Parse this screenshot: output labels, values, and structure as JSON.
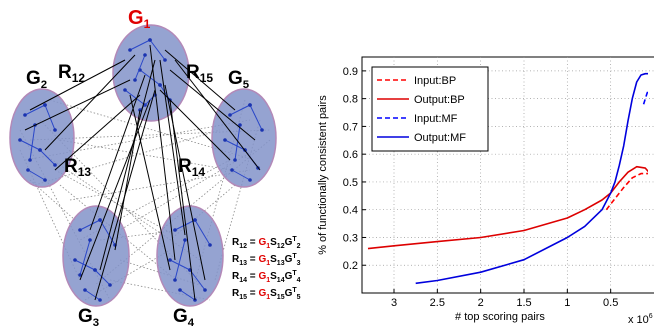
{
  "diagram": {
    "networks": [
      {
        "id": "G1",
        "letter": "G",
        "sub": "1",
        "highlight": true
      },
      {
        "id": "G2",
        "letter": "G",
        "sub": "2",
        "highlight": false
      },
      {
        "id": "G3",
        "letter": "G",
        "sub": "3",
        "highlight": false
      },
      {
        "id": "G4",
        "letter": "G",
        "sub": "4",
        "highlight": false
      },
      {
        "id": "G5",
        "letter": "G",
        "sub": "5",
        "highlight": false
      }
    ],
    "relations": [
      {
        "id": "R12",
        "letter": "R",
        "sub": "12"
      },
      {
        "id": "R13",
        "letter": "R",
        "sub": "13"
      },
      {
        "id": "R14",
        "letter": "R",
        "sub": "14"
      },
      {
        "id": "R15",
        "letter": "R",
        "sub": "15"
      }
    ],
    "equations": [
      {
        "lhs": "R",
        "lhs_sub": "12",
        "eq": " = ",
        "g1": "G",
        "g1_sub": "1",
        "s": "S",
        "s_sub": "12",
        "g": "G",
        "g_sup": "T",
        "g_sub": "2"
      },
      {
        "lhs": "R",
        "lhs_sub": "13",
        "eq": " = ",
        "g1": "G",
        "g1_sub": "1",
        "s": "S",
        "s_sub": "13",
        "g": "G",
        "g_sup": "T",
        "g_sub": "3"
      },
      {
        "lhs": "R",
        "lhs_sub": "14",
        "eq": " = ",
        "g1": "G",
        "g1_sub": "1",
        "s": "S",
        "s_sub": "14",
        "g": "G",
        "g_sup": "T",
        "g_sub": "4"
      },
      {
        "lhs": "R",
        "lhs_sub": "15",
        "eq": " = ",
        "g1": "G",
        "g1_sub": "1",
        "s": "S",
        "s_sub": "15",
        "g": "G",
        "g_sup": "T",
        "g_sub": "5"
      }
    ]
  },
  "chart_data": {
    "type": "line",
    "xlabel": "# top scoring pairs",
    "ylabel": "% of functionally consistent pairs",
    "x_multiplier_label": "x 10",
    "x_multiplier_exp": "6",
    "x_reversed": true,
    "xlim": [
      0,
      3.3
    ],
    "ylim": [
      0.1,
      0.95
    ],
    "xticks": [
      3,
      2.5,
      2,
      1.5,
      1,
      0.5
    ],
    "yticks": [
      0.2,
      0.3,
      0.4,
      0.5,
      0.6,
      0.7,
      0.8,
      0.9
    ],
    "grid": true,
    "legend_position": "top-left",
    "series": [
      {
        "name": "Input:BP",
        "color": "#ff0000",
        "dash": true,
        "x": [
          0.55,
          0.45,
          0.35,
          0.25,
          0.15,
          0.05
        ],
        "y": [
          0.4,
          0.44,
          0.48,
          0.515,
          0.53,
          0.53
        ]
      },
      {
        "name": "Output:BP",
        "color": "#dd0000",
        "dash": false,
        "x": [
          3.3,
          3.0,
          2.5,
          2.0,
          1.5,
          1.0,
          0.8,
          0.6,
          0.5,
          0.4,
          0.3,
          0.2,
          0.1,
          0.03
        ],
        "y": [
          0.26,
          0.27,
          0.285,
          0.3,
          0.325,
          0.37,
          0.4,
          0.435,
          0.46,
          0.5,
          0.535,
          0.555,
          0.55,
          0.525
        ]
      },
      {
        "name": "Input:MF",
        "color": "#0000ff",
        "dash": true,
        "x": [
          0.12,
          0.08,
          0.04,
          0.01
        ],
        "y": [
          0.78,
          0.82,
          0.845,
          0.85
        ]
      },
      {
        "name": "Output:MF",
        "color": "#0000dd",
        "dash": false,
        "x": [
          2.75,
          2.5,
          2.0,
          1.5,
          1.0,
          0.8,
          0.6,
          0.5,
          0.45,
          0.4,
          0.35,
          0.3,
          0.25,
          0.2,
          0.15,
          0.1,
          0.05,
          0.01
        ],
        "y": [
          0.135,
          0.145,
          0.175,
          0.22,
          0.3,
          0.34,
          0.4,
          0.46,
          0.5,
          0.56,
          0.63,
          0.72,
          0.8,
          0.86,
          0.885,
          0.89,
          0.89,
          0.885
        ]
      }
    ]
  }
}
